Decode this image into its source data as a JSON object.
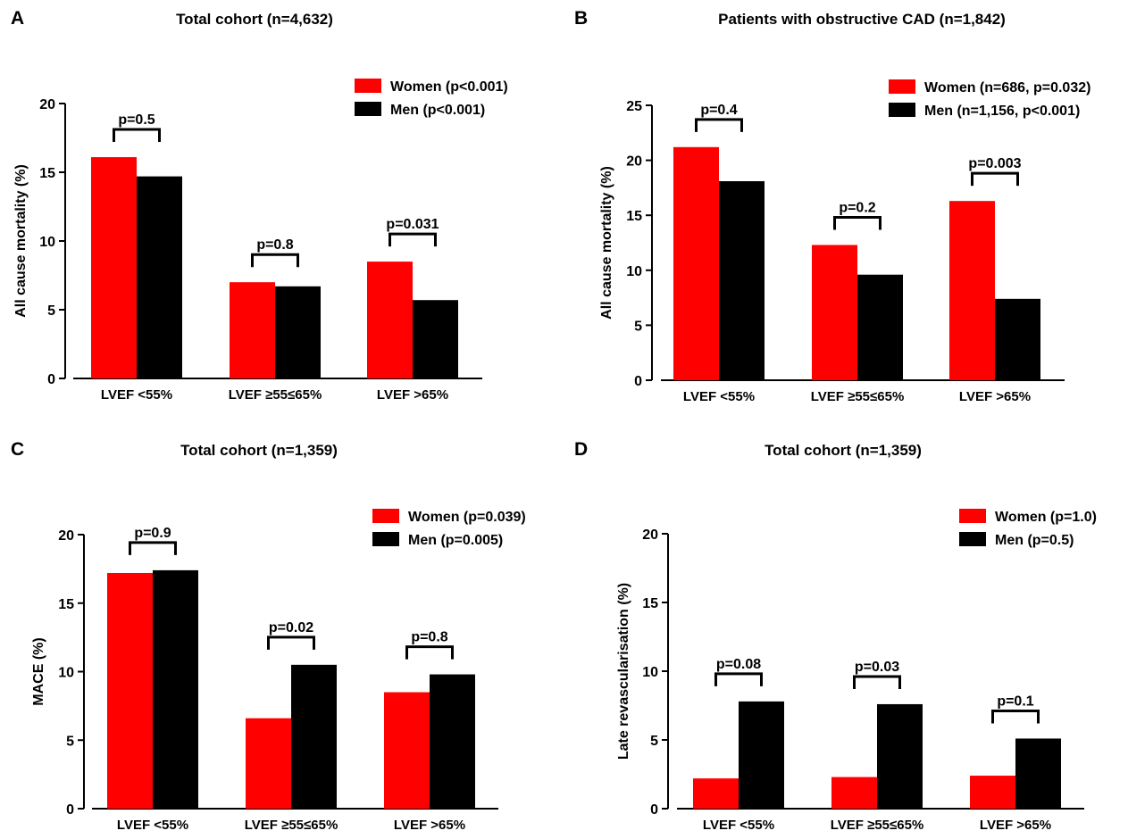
{
  "chart_data": [
    {
      "panel_letter": "A",
      "type": "bar",
      "title": "Total cohort (n=4,632)",
      "ylabel": "All cause mortality (%)",
      "xlabel": "",
      "ylim": [
        0,
        20
      ],
      "yticks": [
        0,
        5,
        10,
        15,
        20
      ],
      "categories": [
        "LVEF <55%",
        "LVEF ≥55≤65%",
        "LVEF >65%"
      ],
      "series": [
        {
          "name": "Women (p<0.001)",
          "color": "#ff0000",
          "values": [
            16.1,
            7.0,
            8.5
          ]
        },
        {
          "name": "Men (p<0.001)",
          "color": "#000000",
          "values": [
            14.7,
            6.7,
            5.7
          ]
        }
      ],
      "pvalues": [
        "p=0.5",
        "p=0.8",
        "p=0.031"
      ],
      "legend": "top-right",
      "grid": false
    },
    {
      "panel_letter": "B",
      "type": "bar",
      "title": "Patients with obstructive CAD (n=1,842)",
      "ylabel": "All cause mortality (%)",
      "xlabel": "",
      "ylim": [
        0,
        25
      ],
      "yticks": [
        0,
        5,
        10,
        15,
        20,
        25
      ],
      "categories": [
        "LVEF <55%",
        "LVEF ≥55≤65%",
        "LVEF >65%"
      ],
      "series": [
        {
          "name": "Women (n=686, p=0.032)",
          "color": "#ff0000",
          "values": [
            21.2,
            12.3,
            16.3
          ]
        },
        {
          "name": "Men (n=1,156, p<0.001)",
          "color": "#000000",
          "values": [
            18.1,
            9.6,
            7.4
          ]
        }
      ],
      "pvalues": [
        "p=0.4",
        "p=0.2",
        "p=0.003"
      ],
      "legend": "top-right",
      "grid": false
    },
    {
      "panel_letter": "C",
      "type": "bar",
      "title": "Total cohort (n=1,359)",
      "ylabel": "MACE (%)",
      "xlabel": "",
      "ylim": [
        0,
        20
      ],
      "yticks": [
        0,
        5,
        10,
        15,
        20
      ],
      "categories": [
        "LVEF <55%",
        "LVEF ≥55≤65%",
        "LVEF >65%"
      ],
      "series": [
        {
          "name": "Women (p=0.039)",
          "color": "#ff0000",
          "values": [
            17.2,
            6.6,
            8.5
          ]
        },
        {
          "name": "Men (p=0.005)",
          "color": "#000000",
          "values": [
            17.4,
            10.5,
            9.8
          ]
        }
      ],
      "pvalues": [
        "p=0.9",
        "p=0.02",
        "p=0.8"
      ],
      "legend": "top-right",
      "grid": false
    },
    {
      "panel_letter": "D",
      "type": "bar",
      "title": "Total cohort (n=1,359)",
      "ylabel": "Late revascularisation (%)",
      "xlabel": "",
      "ylim": [
        0,
        20
      ],
      "yticks": [
        0,
        5,
        10,
        15,
        20
      ],
      "categories": [
        "LVEF <55%",
        "LVEF ≥55≤65%",
        "LVEF >65%"
      ],
      "series": [
        {
          "name": "Women (p=1.0)",
          "color": "#ff0000",
          "values": [
            2.2,
            2.3,
            2.4
          ]
        },
        {
          "name": "Men (p=0.5)",
          "color": "#000000",
          "values": [
            7.8,
            7.6,
            5.1
          ]
        }
      ],
      "pvalues": [
        "p=0.08",
        "p=0.03",
        "p=0.1"
      ],
      "legend": "top-right",
      "grid": false
    }
  ]
}
